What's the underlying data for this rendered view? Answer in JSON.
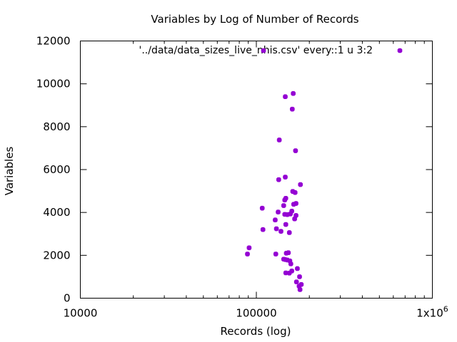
{
  "chart_data": {
    "type": "scatter",
    "title": "Variables by Log of Number of Records",
    "xlabel": "Records (log)",
    "ylabel": "Variables",
    "x_scale": "log",
    "xlim": [
      10000,
      1000000
    ],
    "ylim": [
      0,
      12000
    ],
    "x_ticks": [
      {
        "value": 10000,
        "label": "10000"
      },
      {
        "value": 100000,
        "label": "100000"
      },
      {
        "value": 1000000,
        "label": "1x10",
        "sup": "6"
      }
    ],
    "y_ticks": [
      {
        "value": 0,
        "label": "0"
      },
      {
        "value": 2000,
        "label": "2000"
      },
      {
        "value": 4000,
        "label": "4000"
      },
      {
        "value": 6000,
        "label": "6000"
      },
      {
        "value": 8000,
        "label": "8000"
      },
      {
        "value": 10000,
        "label": "10000"
      },
      {
        "value": 12000,
        "label": "12000"
      }
    ],
    "grid": false,
    "legend_position": "top-right",
    "series": [
      {
        "name": "'../data/data_sizes_live_nhis.csv' every::1 u 3:2",
        "color": "#9400d3",
        "points": [
          {
            "x": 162000,
            "y": 9550
          },
          {
            "x": 146000,
            "y": 9400
          },
          {
            "x": 160000,
            "y": 8820
          },
          {
            "x": 135000,
            "y": 7380
          },
          {
            "x": 167000,
            "y": 6880
          },
          {
            "x": 178000,
            "y": 5300
          },
          {
            "x": 146000,
            "y": 5650
          },
          {
            "x": 134000,
            "y": 5530
          },
          {
            "x": 161000,
            "y": 4980
          },
          {
            "x": 166000,
            "y": 4930
          },
          {
            "x": 147000,
            "y": 4660
          },
          {
            "x": 145000,
            "y": 4580
          },
          {
            "x": 168000,
            "y": 4420
          },
          {
            "x": 163000,
            "y": 4380
          },
          {
            "x": 143000,
            "y": 4320
          },
          {
            "x": 108000,
            "y": 4200
          },
          {
            "x": 133000,
            "y": 4020
          },
          {
            "x": 159000,
            "y": 4060
          },
          {
            "x": 145000,
            "y": 3910
          },
          {
            "x": 150000,
            "y": 3900
          },
          {
            "x": 156000,
            "y": 3930
          },
          {
            "x": 168000,
            "y": 3860
          },
          {
            "x": 128000,
            "y": 3650
          },
          {
            "x": 165000,
            "y": 3700
          },
          {
            "x": 147000,
            "y": 3440
          },
          {
            "x": 109000,
            "y": 3200
          },
          {
            "x": 130000,
            "y": 3240
          },
          {
            "x": 138000,
            "y": 3120
          },
          {
            "x": 154000,
            "y": 3060
          },
          {
            "x": 91000,
            "y": 2350
          },
          {
            "x": 89000,
            "y": 2060
          },
          {
            "x": 129000,
            "y": 2060
          },
          {
            "x": 148000,
            "y": 2100
          },
          {
            "x": 152000,
            "y": 2120
          },
          {
            "x": 146000,
            "y": 1800
          },
          {
            "x": 150000,
            "y": 1780
          },
          {
            "x": 155000,
            "y": 1740
          },
          {
            "x": 143000,
            "y": 1820
          },
          {
            "x": 157000,
            "y": 1600
          },
          {
            "x": 171000,
            "y": 1380
          },
          {
            "x": 159000,
            "y": 1270
          },
          {
            "x": 147000,
            "y": 1180
          },
          {
            "x": 154000,
            "y": 1170
          },
          {
            "x": 176000,
            "y": 1000
          },
          {
            "x": 169000,
            "y": 760
          },
          {
            "x": 180000,
            "y": 640
          },
          {
            "x": 175000,
            "y": 560
          },
          {
            "x": 177000,
            "y": 400
          }
        ]
      }
    ]
  }
}
